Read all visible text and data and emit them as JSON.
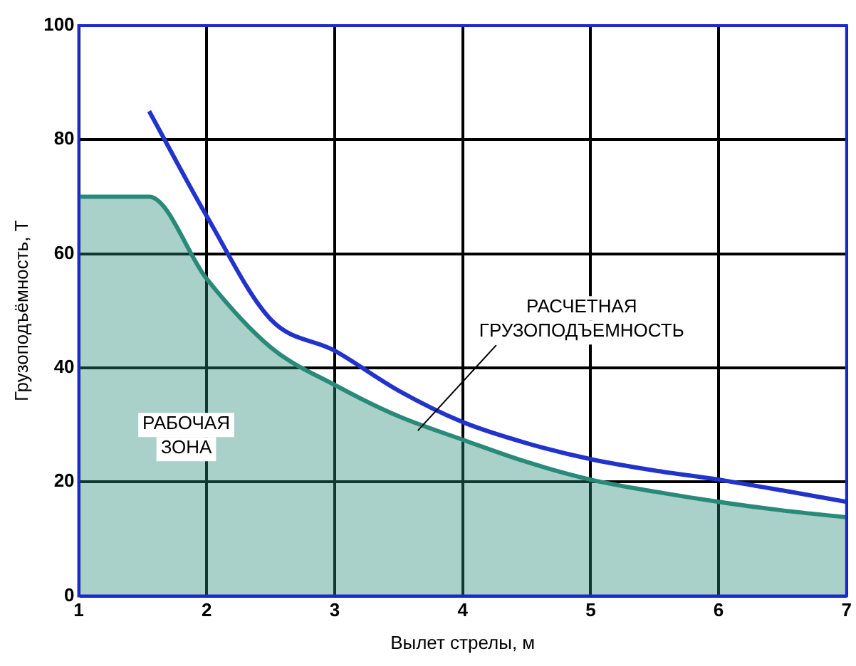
{
  "chart_data": {
    "type": "line",
    "xlabel": "Вылет стрелы, м",
    "ylabel": "Грузоподъёмность, Т",
    "xlim": [
      1,
      7
    ],
    "xticks": [
      1,
      2,
      3,
      4,
      5,
      6,
      7
    ],
    "ylim": [
      0,
      100
    ],
    "yticks": [
      0,
      20,
      40,
      60,
      80,
      100
    ],
    "grid": true,
    "legend": false,
    "marker": "none",
    "line_style": "solid",
    "series": [
      {
        "type": "area",
        "color": "#2a8a7a",
        "x": [
          1,
          1.55,
          2,
          2.5,
          3,
          3.5,
          4,
          4.5,
          5,
          5.5,
          6,
          6.5,
          7
        ],
        "values": [
          70,
          70,
          55.6,
          43.6,
          37,
          31.5,
          27.4,
          23.5,
          20.4,
          18.3,
          16.5,
          15,
          13.8
        ]
      },
      {
        "type": "line",
        "color": "#2233cc",
        "x": [
          1.55,
          2,
          2.5,
          3,
          3.5,
          4,
          4.5,
          5,
          5.5,
          6,
          6.5,
          7
        ],
        "values": [
          85,
          66.6,
          48.5,
          43,
          36,
          30.5,
          26.8,
          24,
          22,
          20.4,
          18.5,
          16.5
        ]
      }
    ],
    "annotations": [
      "РАБОЧАЯ ЗОНА",
      {
        "text": "РАСЧЕТНАЯ ГРУЗОПОДЪЕМНОСТЬ",
        "x": 3.65,
        "y": 29
      }
    ]
  }
}
